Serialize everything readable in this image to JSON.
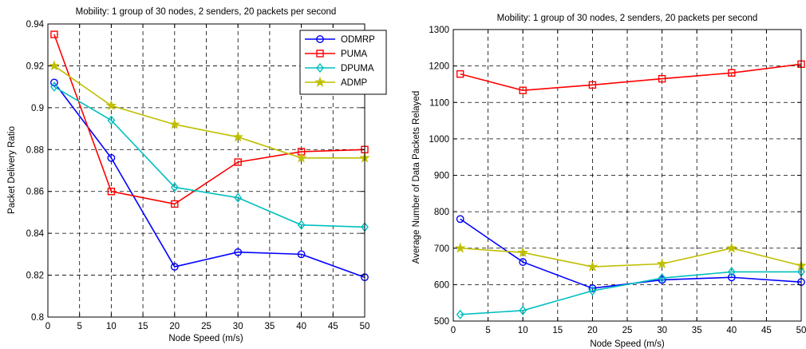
{
  "chart_data": [
    {
      "type": "line",
      "title": "Mobility: 1 group of 30 nodes, 2 senders, 20 packets per second",
      "xlabel": "Node Speed (m/s)",
      "ylabel": "Packet Delivery Ratio",
      "xlim": [
        0,
        50
      ],
      "ylim": [
        0.8,
        0.94
      ],
      "xticks": [
        0,
        5,
        10,
        15,
        20,
        25,
        30,
        35,
        40,
        45,
        50
      ],
      "yticks": [
        0.8,
        0.82,
        0.84,
        0.86,
        0.88,
        0.9,
        0.92,
        0.94
      ],
      "ytick_labels": [
        "0.8",
        "0.82",
        "0.84",
        "0.86",
        "0.88",
        "0.9",
        "0.92",
        "0.94"
      ],
      "grid": true,
      "legend_position": "top-right",
      "x": [
        1,
        10,
        20,
        30,
        40,
        50
      ],
      "series": [
        {
          "name": "ODMRP",
          "color": "#0000ff",
          "marker": "circle",
          "values": [
            0.912,
            0.876,
            0.824,
            0.831,
            0.83,
            0.819
          ]
        },
        {
          "name": "PUMA",
          "color": "#ff0000",
          "marker": "square",
          "values": [
            0.935,
            0.86,
            0.854,
            0.874,
            0.879,
            0.88
          ]
        },
        {
          "name": "DPUMA",
          "color": "#00bfbf",
          "marker": "diamond",
          "values": [
            0.91,
            0.894,
            0.862,
            0.857,
            0.844,
            0.843
          ]
        },
        {
          "name": "ADMP",
          "color": "#bfbf00",
          "marker": "star",
          "values": [
            0.92,
            0.901,
            0.892,
            0.886,
            0.876,
            0.876
          ]
        }
      ]
    },
    {
      "type": "line",
      "title": "Mobility: 1 group of 30 nodes, 2 senders, 20 packets per second",
      "xlabel": "Node Speed (m/s)",
      "ylabel": "Average Number of Data Packets Relayed",
      "xlim": [
        0,
        50
      ],
      "ylim": [
        500,
        1300
      ],
      "xticks": [
        0,
        5,
        10,
        15,
        20,
        25,
        30,
        35,
        40,
        45,
        50
      ],
      "yticks": [
        500,
        600,
        700,
        800,
        900,
        1000,
        1100,
        1200,
        1300
      ],
      "ytick_labels": [
        "500",
        "600",
        "700",
        "800",
        "900",
        "1000",
        "1100",
        "1200",
        "1300"
      ],
      "grid": true,
      "x": [
        1,
        10,
        20,
        30,
        40,
        50
      ],
      "series": [
        {
          "color": "#0000ff",
          "marker": "circle",
          "values": [
            780,
            662,
            590,
            613,
            620,
            607
          ]
        },
        {
          "color": "#ff0000",
          "marker": "square",
          "values": [
            1178,
            1133,
            1148,
            1165,
            1181,
            1205
          ]
        },
        {
          "color": "#00bfbf",
          "marker": "diamond",
          "values": [
            518,
            529,
            583,
            618,
            635,
            635
          ]
        },
        {
          "color": "#bfbf00",
          "marker": "star",
          "values": [
            700,
            688,
            649,
            657,
            700,
            652
          ]
        }
      ]
    }
  ]
}
